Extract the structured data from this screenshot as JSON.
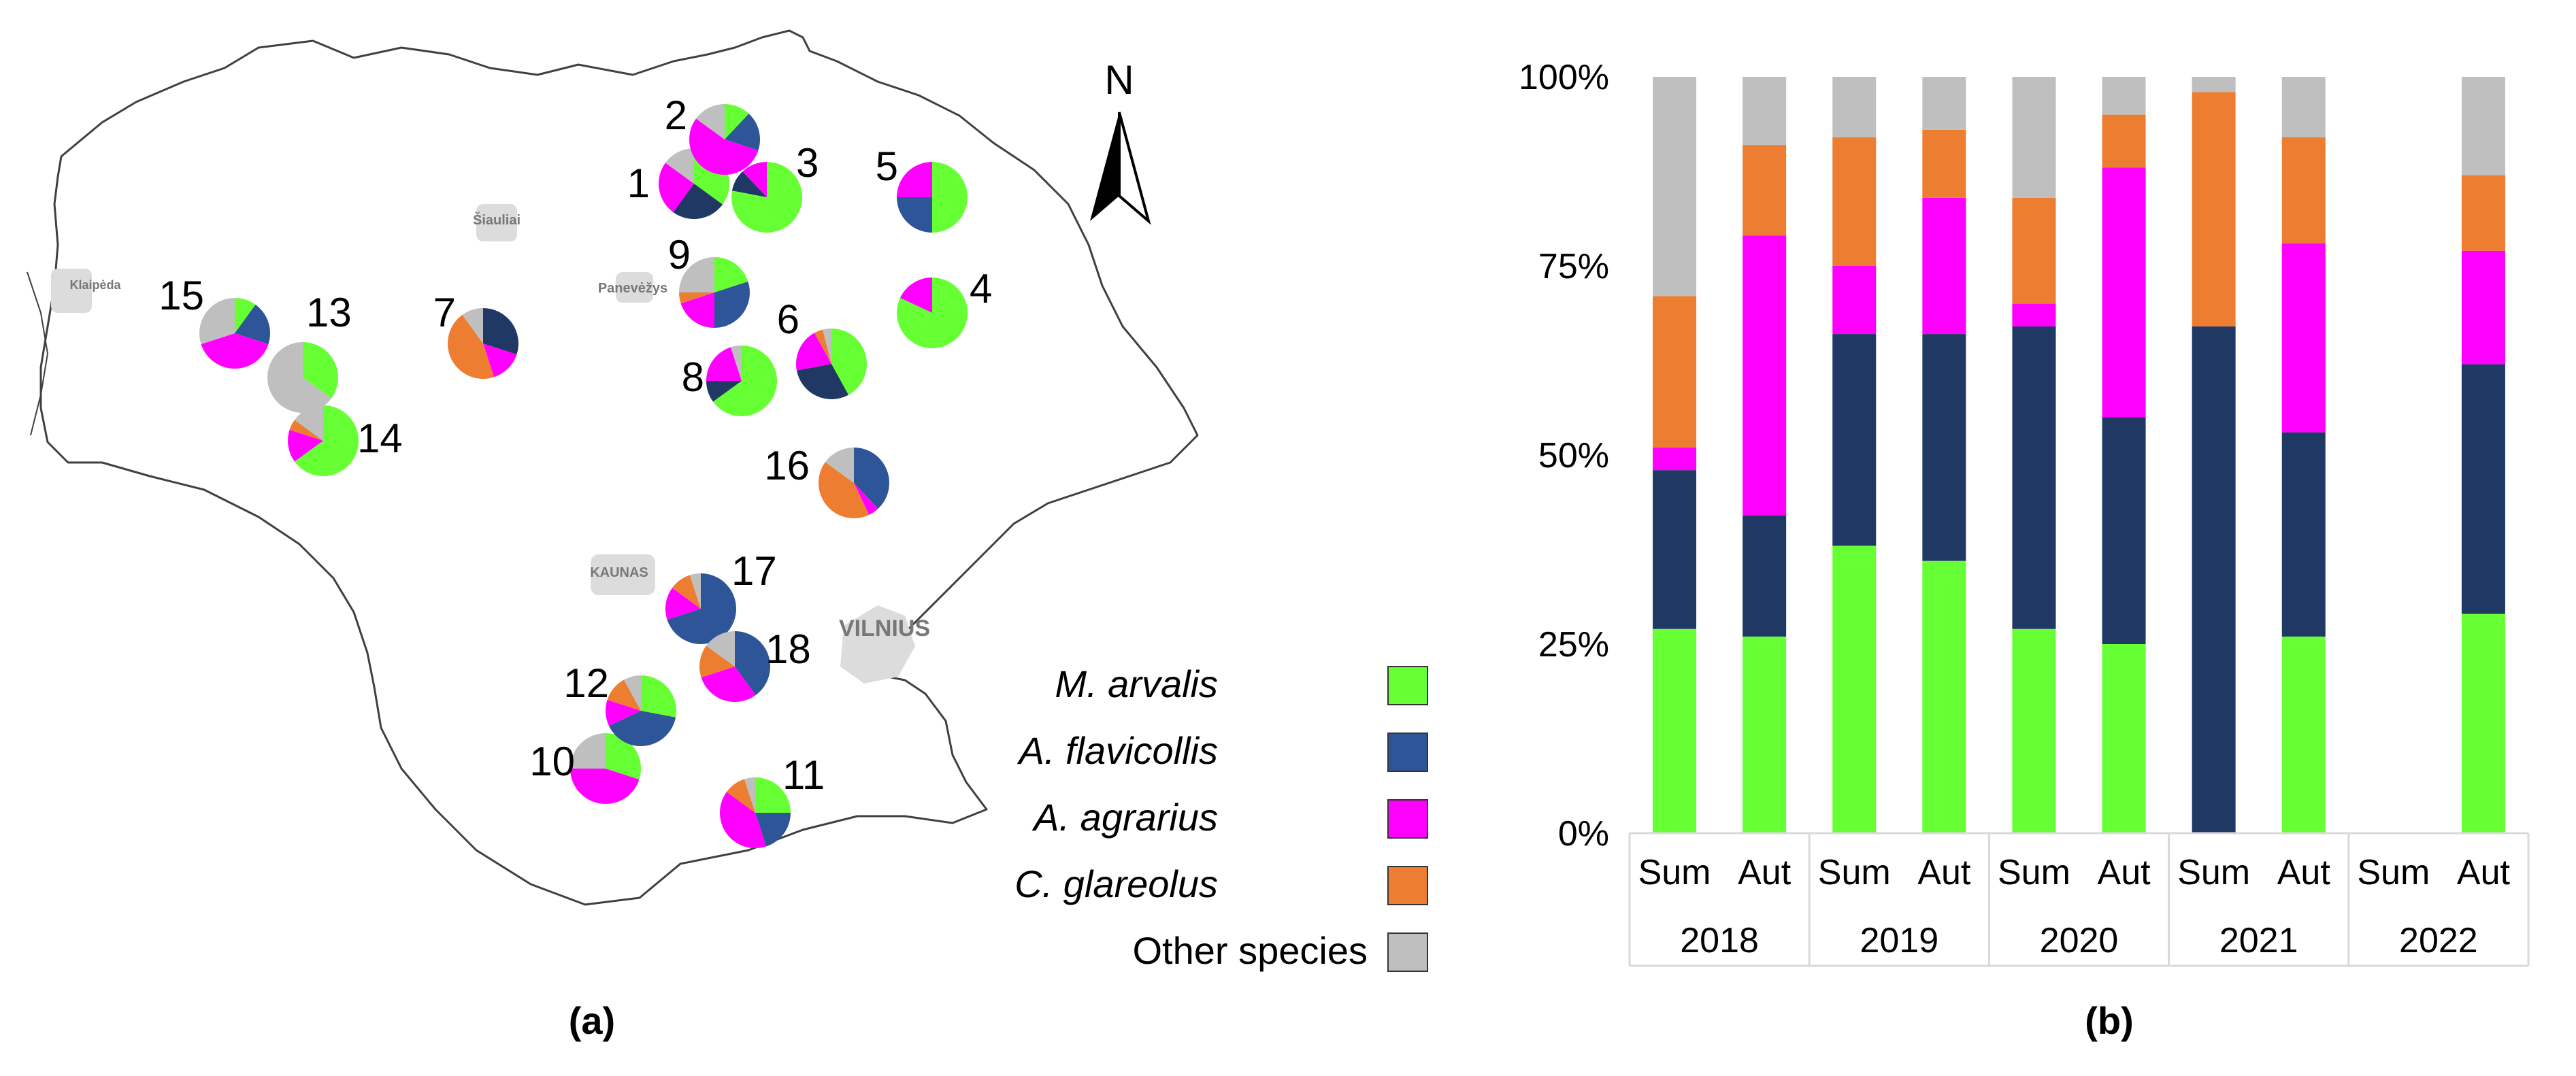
{
  "colors": {
    "m_arvalis": "#66ff33",
    "a_flavicollis": "#1f3864",
    "a_flavicollis_light": "#2e5597",
    "a_agrarius": "#ff00ff",
    "c_glareolus": "#ed7d31",
    "other": "#bfbfbf"
  },
  "map": {
    "north_label": "N",
    "caption": "(a)",
    "cities": {
      "siauliai": "Šiauliai",
      "panevezys": "Panevėžys",
      "klaipeda": "Klaipėda",
      "kaunas": "KAUNAS",
      "vilnius": "VILNIUS"
    },
    "sites": [
      {
        "id": "1",
        "label": "1",
        "slices": [
          [
            "m_arvalis",
            35
          ],
          [
            "a_flavicollis",
            25
          ],
          [
            "a_agrarius",
            25
          ],
          [
            "other",
            15
          ]
        ]
      },
      {
        "id": "2",
        "label": "2",
        "slices": [
          [
            "m_arvalis",
            12
          ],
          [
            "a_flavicollis_light",
            18
          ],
          [
            "a_agrarius",
            55
          ],
          [
            "other",
            15
          ]
        ]
      },
      {
        "id": "3",
        "label": "3",
        "slices": [
          [
            "m_arvalis",
            78
          ],
          [
            "a_flavicollis",
            10
          ],
          [
            "a_agrarius",
            12
          ]
        ]
      },
      {
        "id": "4",
        "label": "4",
        "slices": [
          [
            "m_arvalis",
            82
          ],
          [
            "a_agrarius",
            18
          ]
        ]
      },
      {
        "id": "5",
        "label": "5",
        "slices": [
          [
            "m_arvalis",
            50
          ],
          [
            "a_flavicollis_light",
            25
          ],
          [
            "a_agrarius",
            25
          ]
        ]
      },
      {
        "id": "6",
        "label": "6",
        "slices": [
          [
            "m_arvalis",
            42
          ],
          [
            "a_flavicollis",
            30
          ],
          [
            "a_agrarius",
            20
          ],
          [
            "c_glareolus",
            4
          ],
          [
            "other",
            4
          ]
        ]
      },
      {
        "id": "7",
        "label": "7",
        "slices": [
          [
            "a_flavicollis",
            30
          ],
          [
            "a_agrarius",
            15
          ],
          [
            "c_glareolus",
            45
          ],
          [
            "other",
            10
          ]
        ]
      },
      {
        "id": "8",
        "label": "8",
        "slices": [
          [
            "m_arvalis",
            65
          ],
          [
            "a_flavicollis",
            10
          ],
          [
            "a_agrarius",
            20
          ],
          [
            "other",
            5
          ]
        ]
      },
      {
        "id": "9",
        "label": "9",
        "slices": [
          [
            "m_arvalis",
            20
          ],
          [
            "a_flavicollis_light",
            30
          ],
          [
            "a_agrarius",
            20
          ],
          [
            "c_glareolus",
            5
          ],
          [
            "other",
            25
          ]
        ]
      },
      {
        "id": "10",
        "label": "10",
        "slices": [
          [
            "m_arvalis",
            30
          ],
          [
            "a_agrarius",
            45
          ],
          [
            "other",
            25
          ]
        ]
      },
      {
        "id": "11",
        "label": "11",
        "slices": [
          [
            "m_arvalis",
            25
          ],
          [
            "a_flavicollis_light",
            20
          ],
          [
            "a_agrarius",
            40
          ],
          [
            "c_glareolus",
            10
          ],
          [
            "other",
            5
          ]
        ]
      },
      {
        "id": "12",
        "label": "12",
        "slices": [
          [
            "m_arvalis",
            28
          ],
          [
            "a_flavicollis_light",
            40
          ],
          [
            "a_agrarius",
            12
          ],
          [
            "c_glareolus",
            12
          ],
          [
            "other",
            8
          ]
        ]
      },
      {
        "id": "13",
        "label": "13",
        "slices": [
          [
            "m_arvalis",
            35
          ],
          [
            "other",
            65
          ]
        ]
      },
      {
        "id": "14",
        "label": "14",
        "slices": [
          [
            "m_arvalis",
            65
          ],
          [
            "a_agrarius",
            15
          ],
          [
            "c_glareolus",
            5
          ],
          [
            "other",
            15
          ]
        ]
      },
      {
        "id": "15",
        "label": "15",
        "slices": [
          [
            "m_arvalis",
            10
          ],
          [
            "a_flavicollis_light",
            20
          ],
          [
            "a_agrarius",
            40
          ],
          [
            "other",
            30
          ]
        ]
      },
      {
        "id": "16",
        "label": "16",
        "slices": [
          [
            "a_flavicollis_light",
            38
          ],
          [
            "a_agrarius",
            5
          ],
          [
            "c_glareolus",
            42
          ],
          [
            "other",
            15
          ]
        ]
      },
      {
        "id": "17",
        "label": "17",
        "slices": [
          [
            "a_flavicollis_light",
            70
          ],
          [
            "a_agrarius",
            15
          ],
          [
            "c_glareolus",
            10
          ],
          [
            "other",
            5
          ]
        ]
      },
      {
        "id": "18",
        "label": "18",
        "slices": [
          [
            "a_flavicollis_light",
            40
          ],
          [
            "a_agrarius",
            30
          ],
          [
            "c_glareolus",
            15
          ],
          [
            "other",
            15
          ]
        ]
      }
    ]
  },
  "legend": {
    "items": [
      {
        "label": "M. arvalis",
        "italic": true,
        "color_key": "m_arvalis"
      },
      {
        "label": "A. flavicollis",
        "italic": true,
        "color_key": "a_flavicollis_light"
      },
      {
        "label": "A. agrarius",
        "italic": true,
        "color_key": "a_agrarius"
      },
      {
        "label": "C. glareolus",
        "italic": true,
        "color_key": "c_glareolus"
      },
      {
        "label": "Other species",
        "italic": false,
        "color_key": "other"
      }
    ]
  },
  "chart_data": {
    "type": "bar",
    "stacked": "percent",
    "title": "",
    "caption": "(b)",
    "xlabel": "",
    "ylabel": "",
    "ylim": [
      0,
      100
    ],
    "yticks": [
      "0%",
      "25%",
      "50%",
      "75%",
      "100%"
    ],
    "groups": [
      {
        "year": "2018",
        "categories": [
          "Sum",
          "Aut"
        ]
      },
      {
        "year": "2019",
        "categories": [
          "Sum",
          "Aut"
        ]
      },
      {
        "year": "2020",
        "categories": [
          "Sum",
          "Aut"
        ]
      },
      {
        "year": "2021",
        "categories": [
          "Sum",
          "Aut"
        ]
      },
      {
        "year": "2022",
        "categories": [
          "Sum",
          "Aut"
        ]
      }
    ],
    "categories": [
      "2018 Sum",
      "2018 Aut",
      "2019 Sum",
      "2019 Aut",
      "2020 Sum",
      "2020 Aut",
      "2021 Sum",
      "2021 Aut",
      "2022 Sum",
      "2022 Aut"
    ],
    "series": [
      {
        "name": "M. arvalis",
        "color_key": "m_arvalis",
        "values": [
          27,
          26,
          38,
          36,
          27,
          25,
          0,
          26,
          0,
          29
        ]
      },
      {
        "name": "A. flavicollis",
        "color_key": "a_flavicollis",
        "values": [
          21,
          16,
          28,
          30,
          40,
          30,
          67,
          27,
          0,
          33
        ]
      },
      {
        "name": "A. agrarius",
        "color_key": "a_agrarius",
        "values": [
          3,
          37,
          9,
          18,
          3,
          33,
          0,
          25,
          0,
          15
        ]
      },
      {
        "name": "C. glareolus",
        "color_key": "c_glareolus",
        "values": [
          20,
          12,
          17,
          9,
          14,
          7,
          31,
          14,
          0,
          10
        ]
      },
      {
        "name": "Other species",
        "color_key": "other",
        "values": [
          29,
          9,
          8,
          7,
          16,
          5,
          2,
          8,
          0,
          13
        ]
      }
    ]
  }
}
